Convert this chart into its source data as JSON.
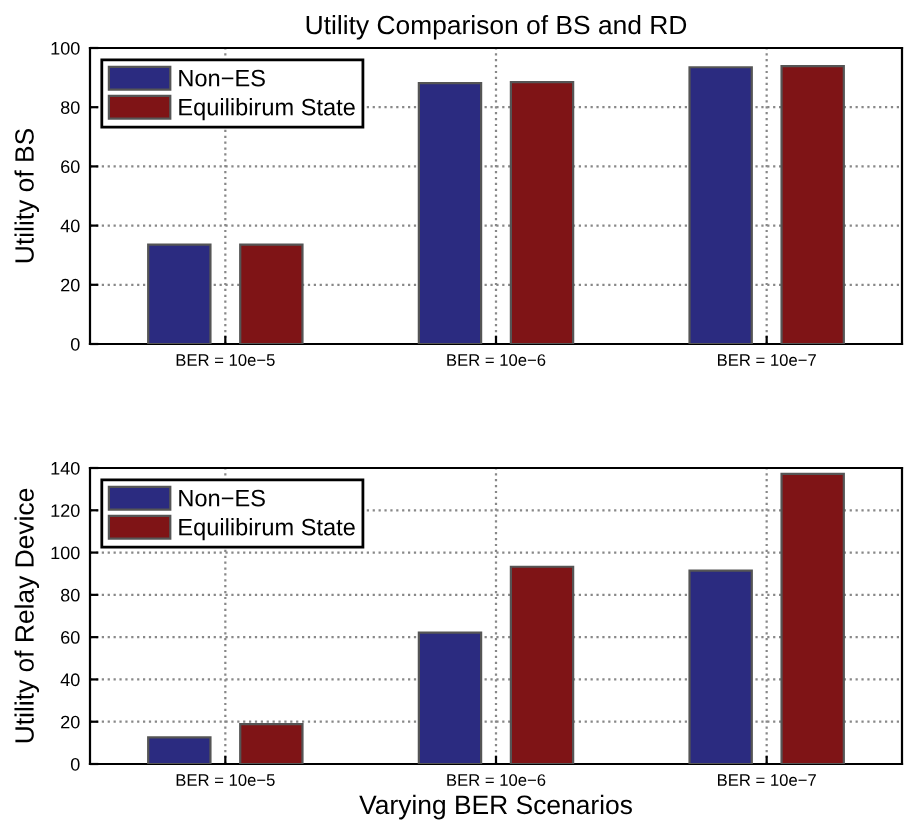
{
  "chart_data": [
    {
      "type": "bar",
      "title": "Utility Comparison of BS and RD",
      "ylabel": "Utility of BS",
      "categories": [
        "BER = 10e−5",
        "BER = 10e−6",
        "BER = 10e−7"
      ],
      "series": [
        {
          "name": "Non−ES",
          "color": "#2b2b80",
          "values": [
            33.6,
            88.1,
            93.5
          ]
        },
        {
          "name": "Equilibirum State",
          "color": "#7f1416",
          "values": [
            33.6,
            88.5,
            93.9
          ]
        }
      ],
      "ylim": [
        0,
        100
      ],
      "yticks": [
        0,
        20,
        40,
        60,
        80,
        100
      ],
      "grid": true,
      "legend": "top left"
    },
    {
      "type": "bar",
      "xlabel": "Varying BER Scenarios",
      "ylabel": "Utility of Relay Device",
      "categories": [
        "BER = 10e−5",
        "BER = 10e−6",
        "BER = 10e−7"
      ],
      "series": [
        {
          "name": "Non−ES",
          "color": "#2b2b80",
          "values": [
            12.6,
            62.1,
            91.5
          ]
        },
        {
          "name": "Equilibirum State",
          "color": "#7f1416",
          "values": [
            18.9,
            93.3,
            137.2
          ]
        }
      ],
      "ylim": [
        0,
        140
      ],
      "yticks": [
        0,
        20,
        40,
        60,
        80,
        100,
        120,
        140
      ],
      "grid": true,
      "legend": "top left"
    }
  ]
}
